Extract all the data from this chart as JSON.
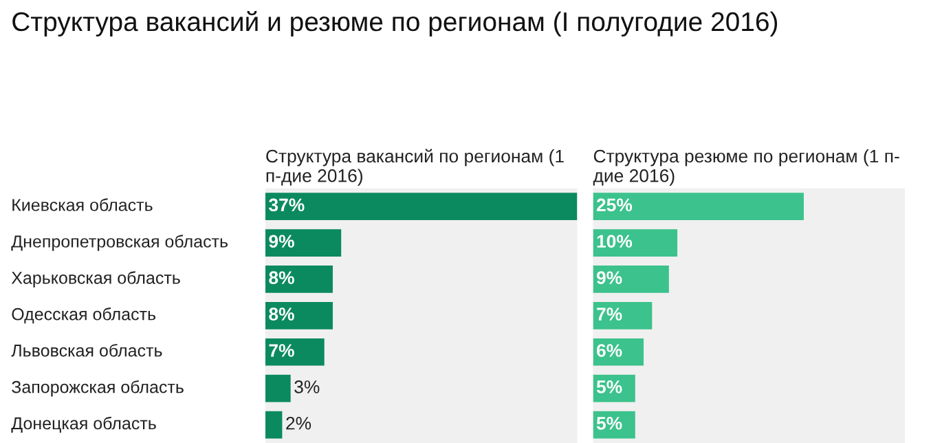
{
  "chart_data": [
    {
      "type": "bar",
      "orientation": "horizontal",
      "title": "Структура вакансий и резюме по регионам (I полугодие 2016)",
      "subtitle": "Структура вакансий по регионам (1\nп-дие 2016)",
      "categories": [
        "Киевская область",
        "Днепропетровская область",
        "Харьковская область",
        "Одесская область",
        "Львовская область",
        "Запорожская область",
        "Донецкая область"
      ],
      "values": [
        37,
        9,
        8,
        8,
        7,
        3,
        2
      ],
      "value_labels": [
        "37%",
        "9%",
        "8%",
        "8%",
        "7%",
        "3%",
        "2%"
      ],
      "color": "#0b8a5f"
    },
    {
      "type": "bar",
      "orientation": "horizontal",
      "subtitle": "Структура резюме по регионам (1 п-\nдие 2016)",
      "values": [
        25,
        10,
        9,
        7,
        6,
        5,
        5
      ],
      "value_labels": [
        "25%",
        "10%",
        "9%",
        "7%",
        "6%",
        "5%",
        "5%"
      ],
      "color": "#3cc28c"
    }
  ]
}
